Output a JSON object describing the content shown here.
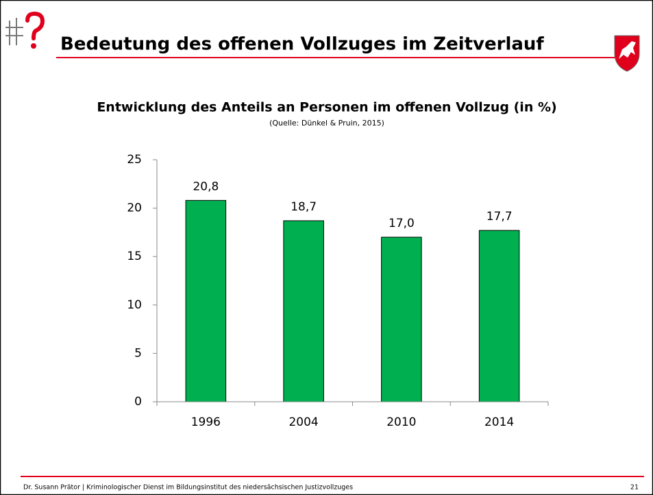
{
  "header": {
    "title": "Bedeutung des offenen Vollzuges im Zeitverlauf"
  },
  "chart_data": {
    "type": "bar",
    "title": "Entwicklung des Anteils an Personen im offenen Vollzug (in %)",
    "subtitle": "(Quelle: Dünkel & Pruin, 2015)",
    "categories": [
      "1996",
      "2004",
      "2010",
      "2014"
    ],
    "values": [
      20.8,
      18.7,
      17.0,
      17.7
    ],
    "value_labels": [
      "20,8",
      "18,7",
      "17,0",
      "17,7"
    ],
    "color": "#00b050",
    "ylim": [
      0,
      25
    ],
    "yticks": [
      0,
      5,
      10,
      15,
      20,
      25
    ],
    "grid": false
  },
  "footer": {
    "text": "Dr. Susann Prätor | Kriminologischer Dienst im Bildungsinstitut des niedersächsischen Justizvollzuges",
    "page": "21"
  }
}
